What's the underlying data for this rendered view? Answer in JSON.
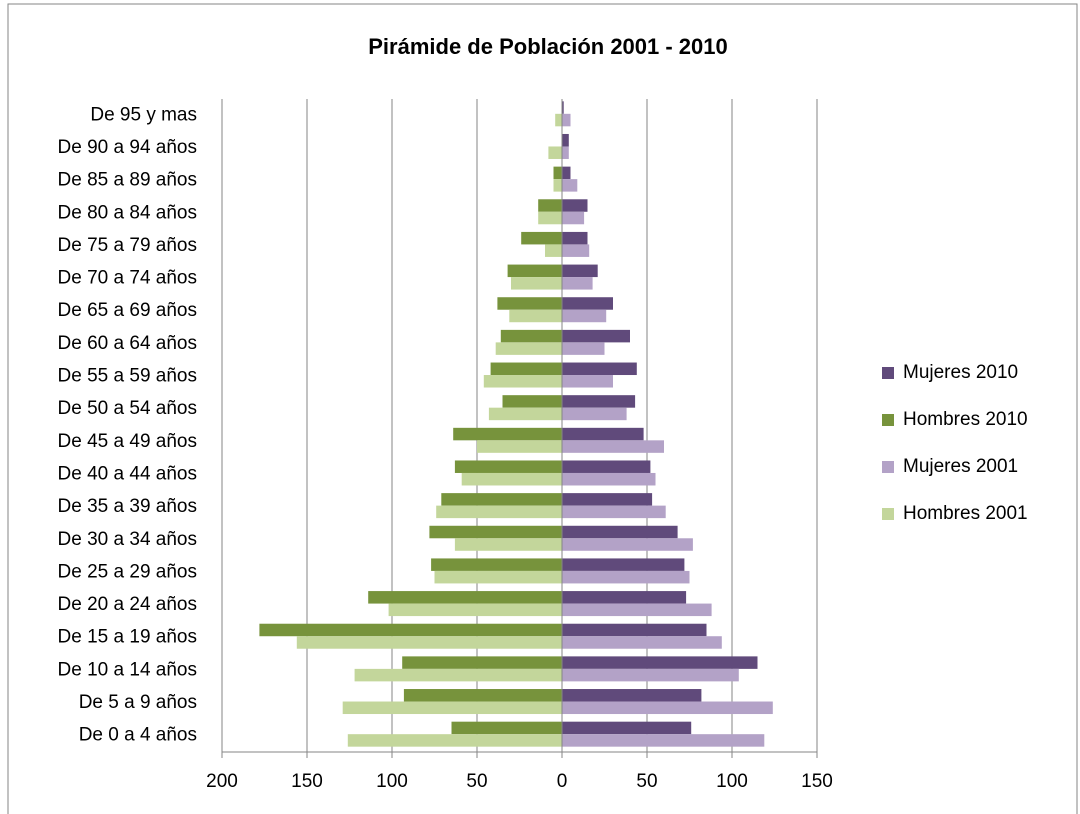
{
  "chart_data": {
    "type": "pyramid",
    "title": "Pirámide de Población 2001 - 2010",
    "categories": [
      "De 0 a 4 años",
      "De 5 a 9 años",
      "De 10 a 14 años",
      "De 15 a 19 años",
      "De 20 a 24 años",
      "De 25 a 29 años",
      "De 30 a 34 años",
      "De 35 a 39 años",
      "De 40 a 44 años",
      "De 45 a 49 años",
      "De 50 a 54 años",
      "De 55 a 59 años",
      "De 60 a 64 años",
      "De 65 a 69 años",
      "De 70 a 74 años",
      "De 75 a 79 años",
      "De 80 a 84 años",
      "De 85 a 89 años",
      "De 90 a 94 años",
      "De 95 y mas"
    ],
    "series": [
      {
        "name": "Mujeres 2010",
        "color": "#604a7b",
        "values": [
          76,
          82,
          115,
          85,
          73,
          72,
          68,
          53,
          52,
          48,
          43,
          44,
          40,
          30,
          21,
          15,
          15,
          5,
          4,
          1
        ]
      },
      {
        "name": "Hombres 2010",
        "color": "#77933c",
        "values": [
          -65,
          -93,
          -94,
          -178,
          -114,
          -77,
          -78,
          -71,
          -63,
          -64,
          -35,
          -42,
          -36,
          -38,
          -32,
          -24,
          -14,
          -5,
          0,
          0
        ]
      },
      {
        "name": "Mujeres 2001",
        "color": "#b3a2c7",
        "values": [
          119,
          124,
          104,
          94,
          88,
          75,
          77,
          61,
          55,
          60,
          38,
          30,
          25,
          26,
          18,
          16,
          13,
          9,
          4,
          5
        ]
      },
      {
        "name": "Hombres 2001",
        "color": "#c3d69b",
        "values": [
          -126,
          -129,
          -122,
          -156,
          -102,
          -75,
          -63,
          -74,
          -59,
          -50,
          -43,
          -46,
          -39,
          -31,
          -30,
          -10,
          -14,
          -5,
          -8,
          -4
        ]
      }
    ],
    "xlim": [
      -200,
      150
    ],
    "xticks": [
      {
        "value": -200,
        "label": "200"
      },
      {
        "value": -150,
        "label": "150"
      },
      {
        "value": -100,
        "label": "100"
      },
      {
        "value": -50,
        "label": "50"
      },
      0,
      50,
      100,
      150
    ],
    "grid": true,
    "legend": "right"
  }
}
